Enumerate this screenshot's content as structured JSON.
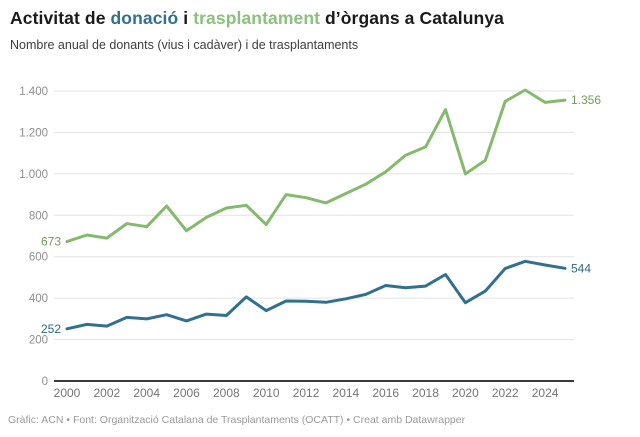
{
  "header": {
    "title_parts": [
      {
        "text": "Activitat de ",
        "color": "#1a1a1a"
      },
      {
        "text": "donació",
        "color": "#31708f"
      },
      {
        "text": " i ",
        "color": "#1a1a1a"
      },
      {
        "text": "trasplantament",
        "color": "#8cc07d"
      },
      {
        "text": " d’òrgans a Catalunya",
        "color": "#1a1a1a"
      }
    ],
    "subtitle": "Nombre anual de donants (vius i cadàver) i de trasplantaments"
  },
  "footer": {
    "text": "Gràfic: ACN • Font: Organització Catalana de Trasplantaments (OCATT) • Creat amb Datawrapper"
  },
  "chart_data": {
    "type": "line",
    "title": "Activitat de donació i trasplantament d’òrgans a Catalunya",
    "subtitle": "Nombre anual de donants (vius i cadàver) i de trasplantaments",
    "x": [
      2000,
      2001,
      2002,
      2003,
      2004,
      2005,
      2006,
      2007,
      2008,
      2009,
      2010,
      2011,
      2012,
      2013,
      2014,
      2015,
      2016,
      2017,
      2018,
      2019,
      2020,
      2021,
      2022,
      2023,
      2024,
      2025
    ],
    "series": [
      {
        "name": "trasplantament",
        "key": "transplants",
        "color": "#84ba6d",
        "label_color": "#6f9e58",
        "start_label": "673",
        "end_label": "1.356",
        "values": [
          673,
          705,
          690,
          760,
          745,
          845,
          725,
          790,
          835,
          848,
          755,
          900,
          885,
          860,
          905,
          950,
          1010,
          1090,
          1130,
          1310,
          1000,
          1065,
          1350,
          1405,
          1345,
          1356
        ]
      },
      {
        "name": "donació (donants)",
        "key": "donors",
        "color": "#31708f",
        "label_color": "#2e6a87",
        "start_label": "252",
        "end_label": "544",
        "values": [
          252,
          273,
          265,
          307,
          300,
          320,
          290,
          323,
          316,
          406,
          340,
          386,
          385,
          380,
          397,
          418,
          461,
          450,
          458,
          514,
          378,
          434,
          543,
          578,
          560,
          544
        ]
      }
    ],
    "ylim": [
      0,
      1400
    ],
    "yticks": [
      "0",
      "200",
      "400",
      "600",
      "800",
      "1.000",
      "1.200",
      "1.400"
    ],
    "ytick_values": [
      0,
      200,
      400,
      600,
      800,
      1000,
      1200,
      1400
    ],
    "xticks": [
      2000,
      2002,
      2004,
      2006,
      2008,
      2010,
      2012,
      2014,
      2016,
      2018,
      2020,
      2022,
      2024
    ],
    "grid": true,
    "legend_position": "none (series identified by colored words in title)",
    "colors": {
      "grid": "#e3e3e3",
      "axis": "#393939",
      "x_tick_label": "#757575",
      "y_tick_label": "#8f8f8f"
    }
  }
}
